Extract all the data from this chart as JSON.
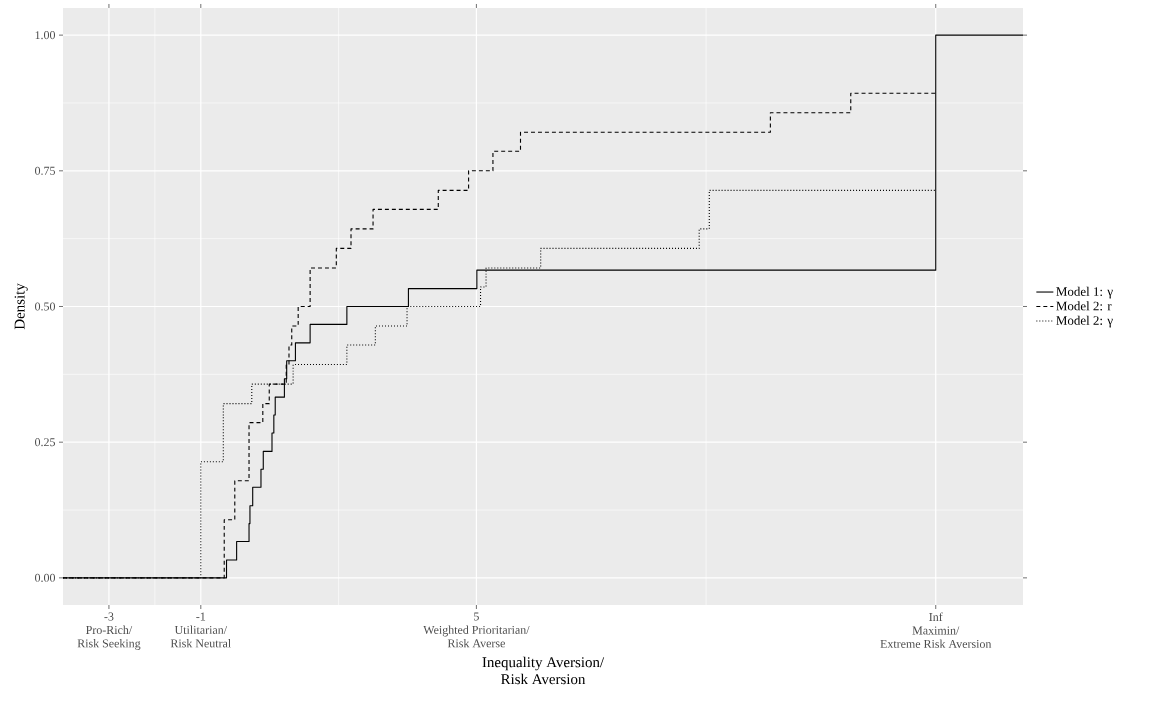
{
  "chart_data": {
    "type": "step",
    "xlabel": "Inequality Aversion/\nRisk Aversion",
    "ylabel": "Density",
    "xlim": [
      -4,
      16.9
    ],
    "ylim": [
      -0.05,
      1.05
    ],
    "xticks": [
      {
        "value": -3,
        "label": "-3\nPro-Rich/\nRisk Seeking"
      },
      {
        "value": -1,
        "label": "-1\nUtilitarian/\nRisk Neutral"
      },
      {
        "value": 5,
        "label": "5\nWeighted Prioritarian/\nRisk Averse"
      },
      {
        "value": 15,
        "label": "Inf\nMaximin/\nExtreme Risk Aversion"
      }
    ],
    "yticks": [
      {
        "value": 0,
        "label": "0.00"
      },
      {
        "value": 0.25,
        "label": "0.25"
      },
      {
        "value": 0.5,
        "label": "0.50"
      },
      {
        "value": 0.75,
        "label": "0.75"
      },
      {
        "value": 1,
        "label": "1.00"
      }
    ],
    "grid": true,
    "legend": "right",
    "marker": "none",
    "series": [
      {
        "name": "Model 1: γ",
        "color": "#000000",
        "line_style": "solid",
        "x": [
          -4,
          -0.44,
          -0.22,
          0.05,
          0.07,
          0.13,
          0.31,
          0.36,
          0.55,
          0.59,
          0.62,
          0.82,
          0.87,
          1.06,
          1.38,
          2.18,
          3.52,
          5.01,
          15,
          16.9
        ],
        "values": [
          0,
          0.033,
          0.067,
          0.1,
          0.133,
          0.167,
          0.2,
          0.233,
          0.267,
          0.3,
          0.333,
          0.367,
          0.4,
          0.433,
          0.467,
          0.5,
          0.533,
          0.567,
          1,
          1
        ]
      },
      {
        "name": "Model 2: r",
        "color": "#000000",
        "line_style": "dashed",
        "x": [
          -4,
          -0.49,
          -0.26,
          0.05,
          0.35,
          0.49,
          0.86,
          0.92,
          0.98,
          1.12,
          1.38,
          1.95,
          2.27,
          2.75,
          4.17,
          4.83,
          5.36,
          5.96,
          11.4,
          13.15,
          15
        ],
        "values": [
          0,
          0.107,
          0.179,
          0.286,
          0.321,
          0.357,
          0.393,
          0.429,
          0.464,
          0.5,
          0.571,
          0.607,
          0.643,
          0.679,
          0.714,
          0.75,
          0.786,
          0.821,
          0.857,
          0.893,
          0.893
        ]
      },
      {
        "name": "Model 2: γ",
        "color": "#000000",
        "line_style": "dotted",
        "x": [
          -4,
          -1,
          -0.51,
          0.11,
          1.01,
          2.18,
          2.8,
          3.49,
          5.09,
          5.21,
          6.4,
          9.85,
          10.07,
          15
        ],
        "values": [
          0,
          0.214,
          0.321,
          0.357,
          0.393,
          0.429,
          0.464,
          0.5,
          0.536,
          0.571,
          0.607,
          0.643,
          0.714,
          0.714
        ]
      }
    ]
  }
}
